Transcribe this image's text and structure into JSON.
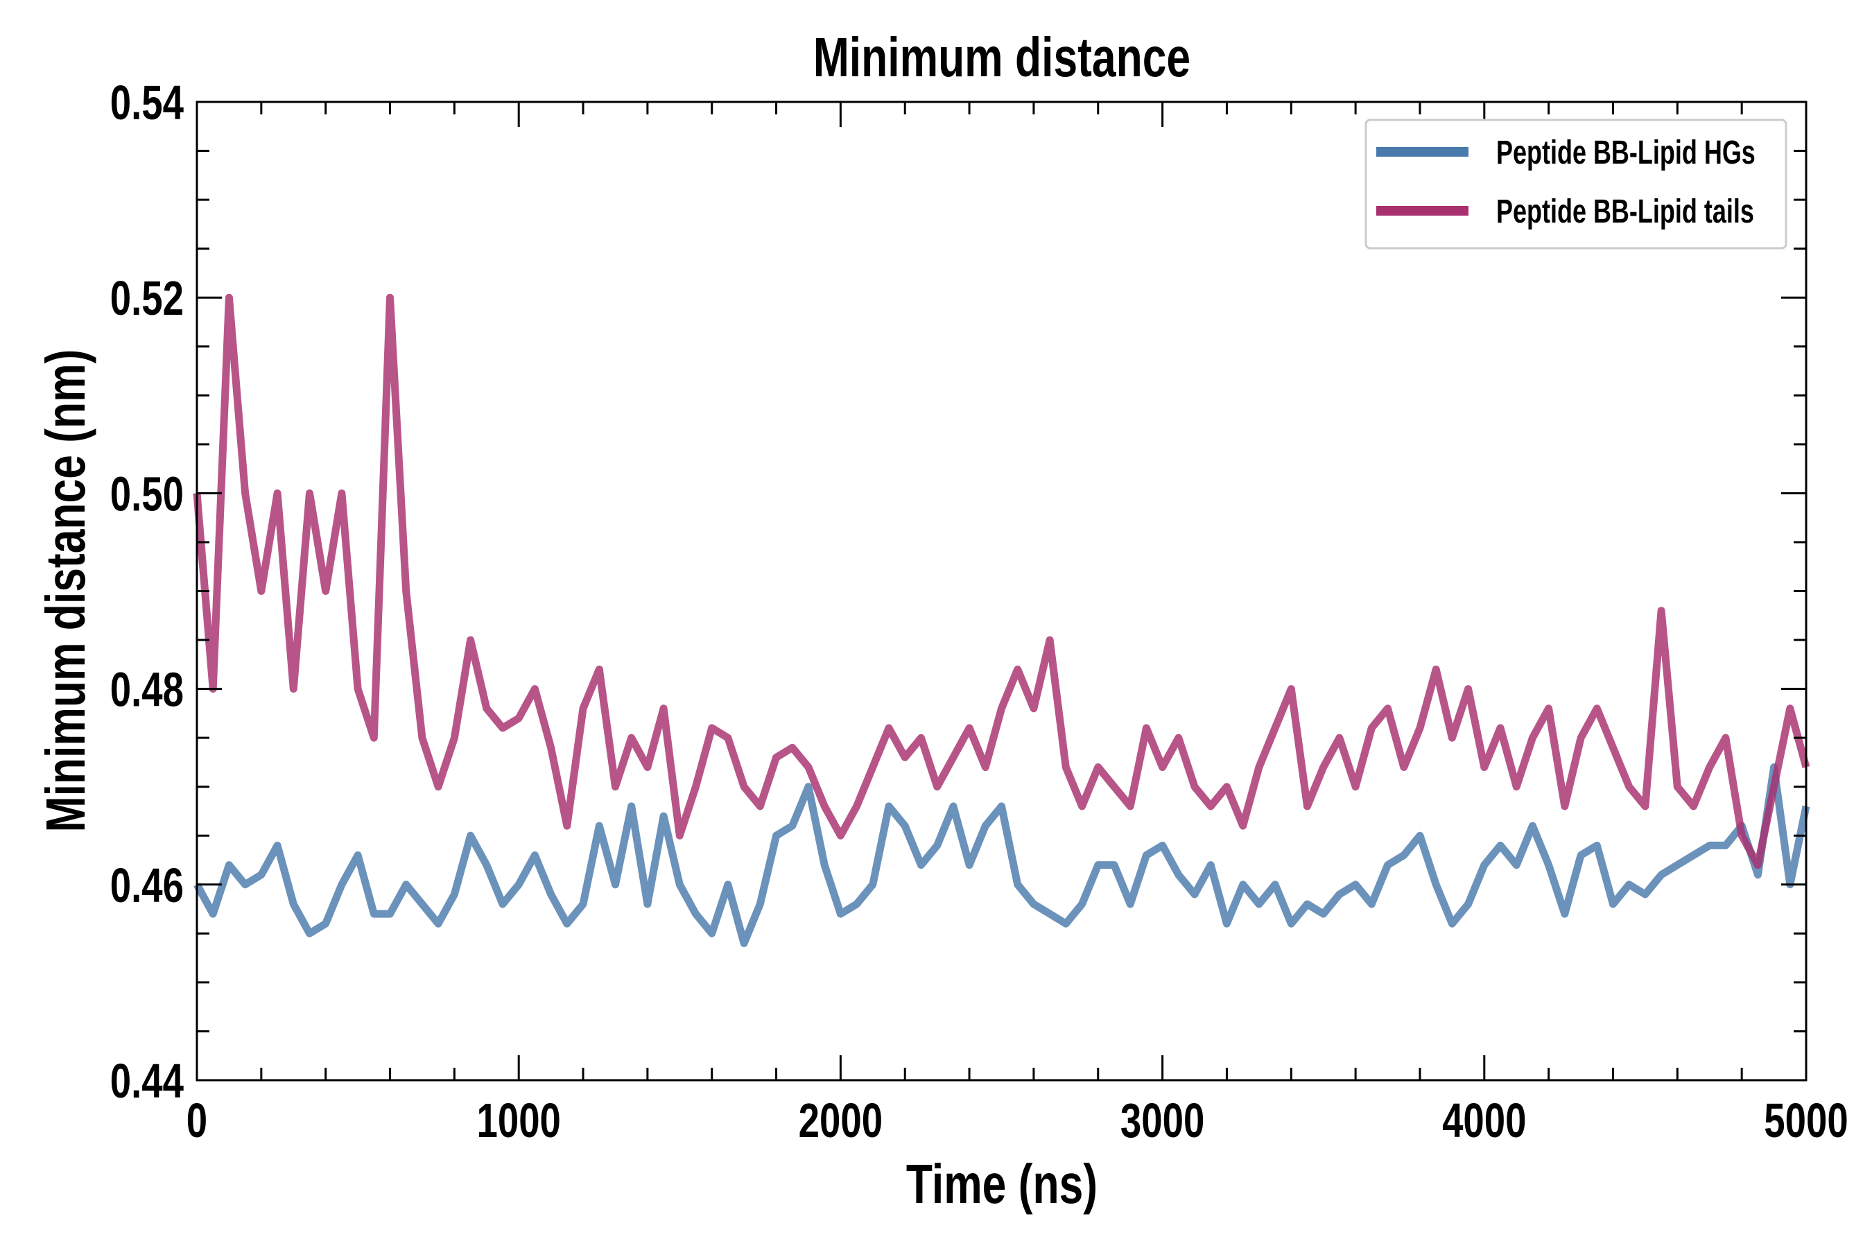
{
  "chart_data": {
    "type": "line",
    "title": "Minimum distance",
    "xlabel": "Time (ns)",
    "ylabel": "Minimum distance (nm)",
    "xlim": [
      0,
      5000
    ],
    "ylim": [
      0.44,
      0.54
    ],
    "xticks": [
      0,
      1000,
      2000,
      3000,
      4000,
      5000
    ],
    "xtick_labels": [
      "0",
      "1000",
      "2000",
      "3000",
      "4000",
      "5000"
    ],
    "yticks": [
      0.44,
      0.46,
      0.48,
      0.5,
      0.52,
      0.54
    ],
    "ytick_labels": [
      "0.44",
      "0.46",
      "0.48",
      "0.50",
      "0.52",
      "0.54"
    ],
    "grid": false,
    "legend_position": "top-right",
    "x": [
      0,
      50,
      100,
      150,
      200,
      250,
      300,
      350,
      400,
      450,
      500,
      550,
      600,
      650,
      700,
      750,
      800,
      850,
      900,
      950,
      1000,
      1050,
      1100,
      1150,
      1200,
      1250,
      1300,
      1350,
      1400,
      1450,
      1500,
      1550,
      1600,
      1650,
      1700,
      1750,
      1800,
      1850,
      1900,
      1950,
      2000,
      2050,
      2100,
      2150,
      2200,
      2250,
      2300,
      2350,
      2400,
      2450,
      2500,
      2550,
      2600,
      2650,
      2700,
      2750,
      2800,
      2850,
      2900,
      2950,
      3000,
      3050,
      3100,
      3150,
      3200,
      3250,
      3300,
      3350,
      3400,
      3450,
      3500,
      3550,
      3600,
      3650,
      3700,
      3750,
      3800,
      3850,
      3900,
      3950,
      4000,
      4050,
      4100,
      4150,
      4200,
      4250,
      4300,
      4350,
      4400,
      4450,
      4500,
      4550,
      4600,
      4650,
      4700,
      4750,
      4800,
      4850,
      4900,
      4950,
      5000
    ],
    "series": [
      {
        "name": "Peptide BB-Lipid HGs",
        "color": "#4a7aab",
        "values": [
          0.46,
          0.457,
          0.462,
          0.46,
          0.461,
          0.464,
          0.458,
          0.455,
          0.456,
          0.46,
          0.463,
          0.457,
          0.457,
          0.46,
          0.458,
          0.456,
          0.459,
          0.465,
          0.462,
          0.458,
          0.46,
          0.463,
          0.459,
          0.456,
          0.458,
          0.466,
          0.46,
          0.468,
          0.458,
          0.467,
          0.46,
          0.457,
          0.455,
          0.46,
          0.454,
          0.458,
          0.465,
          0.466,
          0.47,
          0.462,
          0.457,
          0.458,
          0.46,
          0.468,
          0.466,
          0.462,
          0.464,
          0.468,
          0.462,
          0.466,
          0.468,
          0.46,
          0.458,
          0.457,
          0.456,
          0.458,
          0.462,
          0.462,
          0.458,
          0.463,
          0.464,
          0.461,
          0.459,
          0.462,
          0.456,
          0.46,
          0.458,
          0.46,
          0.456,
          0.458,
          0.457,
          0.459,
          0.46,
          0.458,
          0.462,
          0.463,
          0.465,
          0.46,
          0.456,
          0.458,
          0.462,
          0.464,
          0.462,
          0.466,
          0.462,
          0.457,
          0.463,
          0.464,
          0.458,
          0.46,
          0.459,
          0.461,
          0.462,
          0.463,
          0.464,
          0.464,
          0.466,
          0.461,
          0.472,
          0.46,
          0.468
        ]
      },
      {
        "name": "Peptide BB-Lipid tails",
        "color": "#a8306e",
        "values": [
          0.5,
          0.48,
          0.52,
          0.5,
          0.49,
          0.5,
          0.48,
          0.5,
          0.49,
          0.5,
          0.48,
          0.475,
          0.52,
          0.49,
          0.475,
          0.47,
          0.475,
          0.485,
          0.478,
          0.476,
          0.477,
          0.48,
          0.474,
          0.466,
          0.478,
          0.482,
          0.47,
          0.475,
          0.472,
          0.478,
          0.465,
          0.47,
          0.476,
          0.475,
          0.47,
          0.468,
          0.473,
          0.474,
          0.472,
          0.468,
          0.465,
          0.468,
          0.472,
          0.476,
          0.473,
          0.475,
          0.47,
          0.473,
          0.476,
          0.472,
          0.478,
          0.482,
          0.478,
          0.485,
          0.472,
          0.468,
          0.472,
          0.47,
          0.468,
          0.476,
          0.472,
          0.475,
          0.47,
          0.468,
          0.47,
          0.466,
          0.472,
          0.476,
          0.48,
          0.468,
          0.472,
          0.475,
          0.47,
          0.476,
          0.478,
          0.472,
          0.476,
          0.482,
          0.475,
          0.48,
          0.472,
          0.476,
          0.47,
          0.475,
          0.478,
          0.468,
          0.475,
          0.478,
          0.474,
          0.47,
          0.468,
          0.488,
          0.47,
          0.468,
          0.472,
          0.475,
          0.465,
          0.462,
          0.47,
          0.478,
          0.472
        ]
      }
    ]
  }
}
